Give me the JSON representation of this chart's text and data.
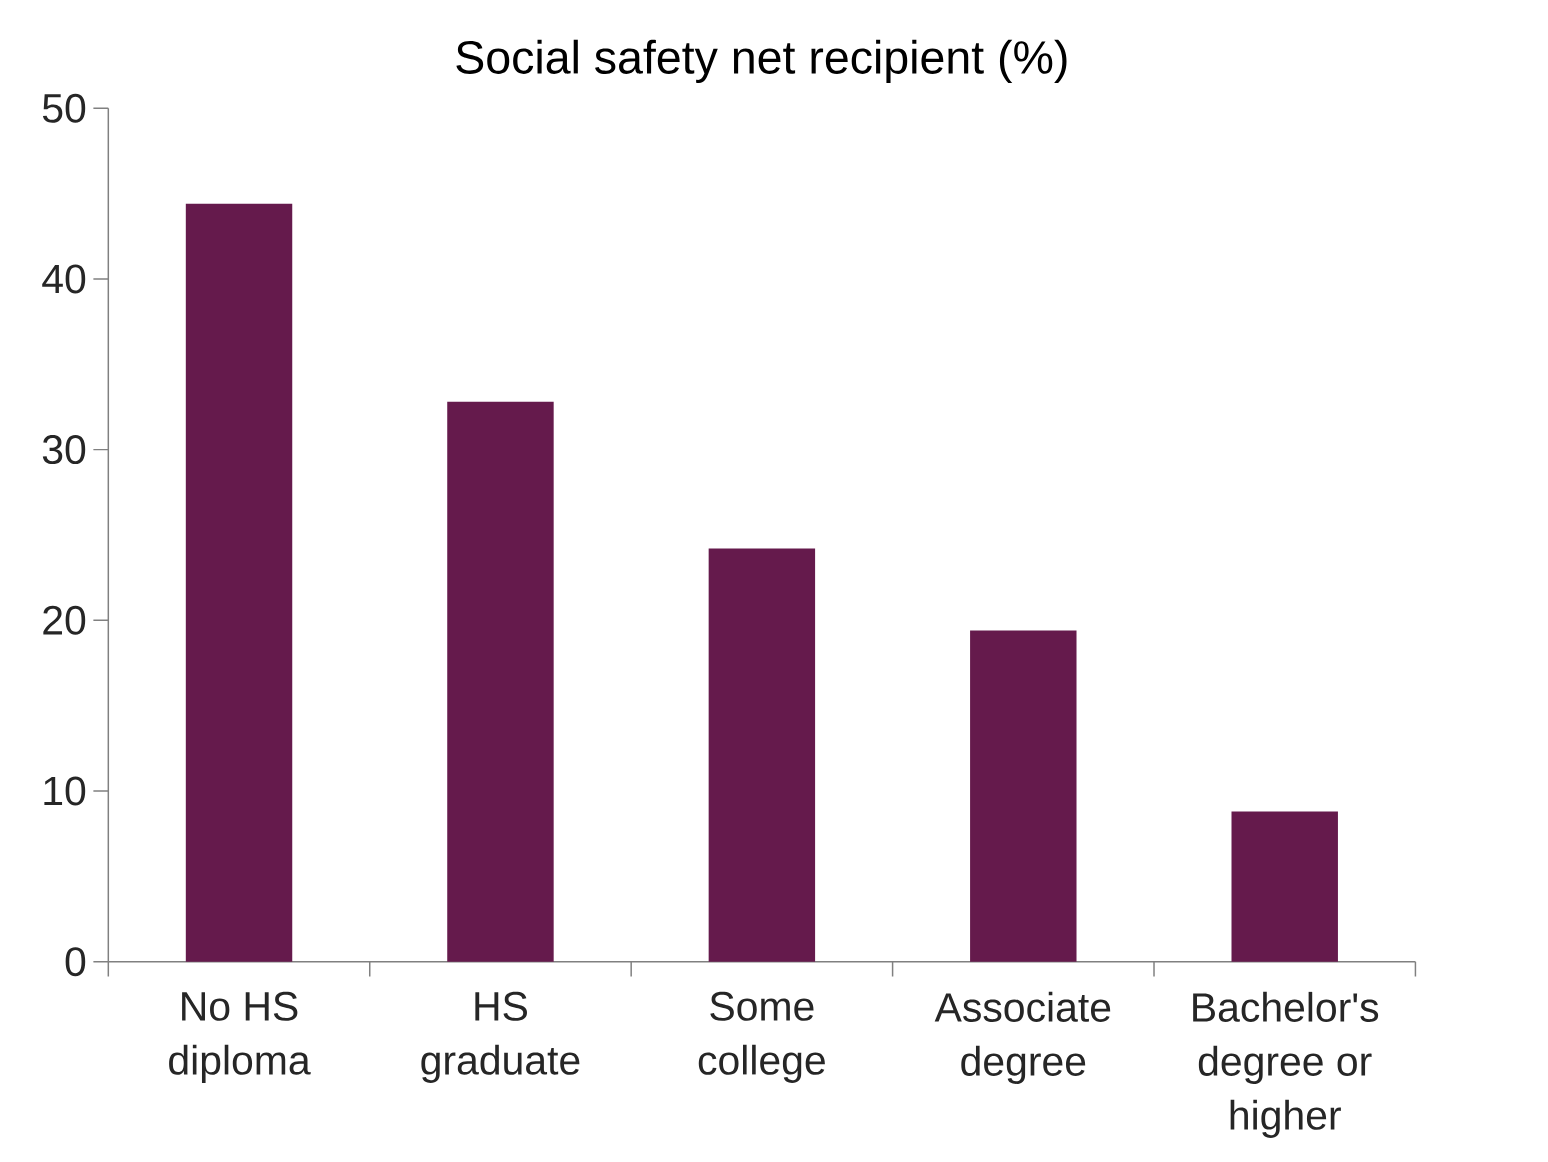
{
  "chart_data": {
    "type": "bar",
    "title": "Social safety net recipient (%)",
    "categories": [
      "No HS diploma",
      "HS graduate",
      "Some college",
      "Associate degree",
      "Bachelor's degree or higher"
    ],
    "values": [
      44.4,
      32.8,
      24.2,
      19.4,
      8.8
    ],
    "color": "#651a4c",
    "ylim": [
      0,
      50
    ],
    "yticks": [
      0,
      10,
      20,
      30,
      40,
      50
    ],
    "grid": false
  }
}
